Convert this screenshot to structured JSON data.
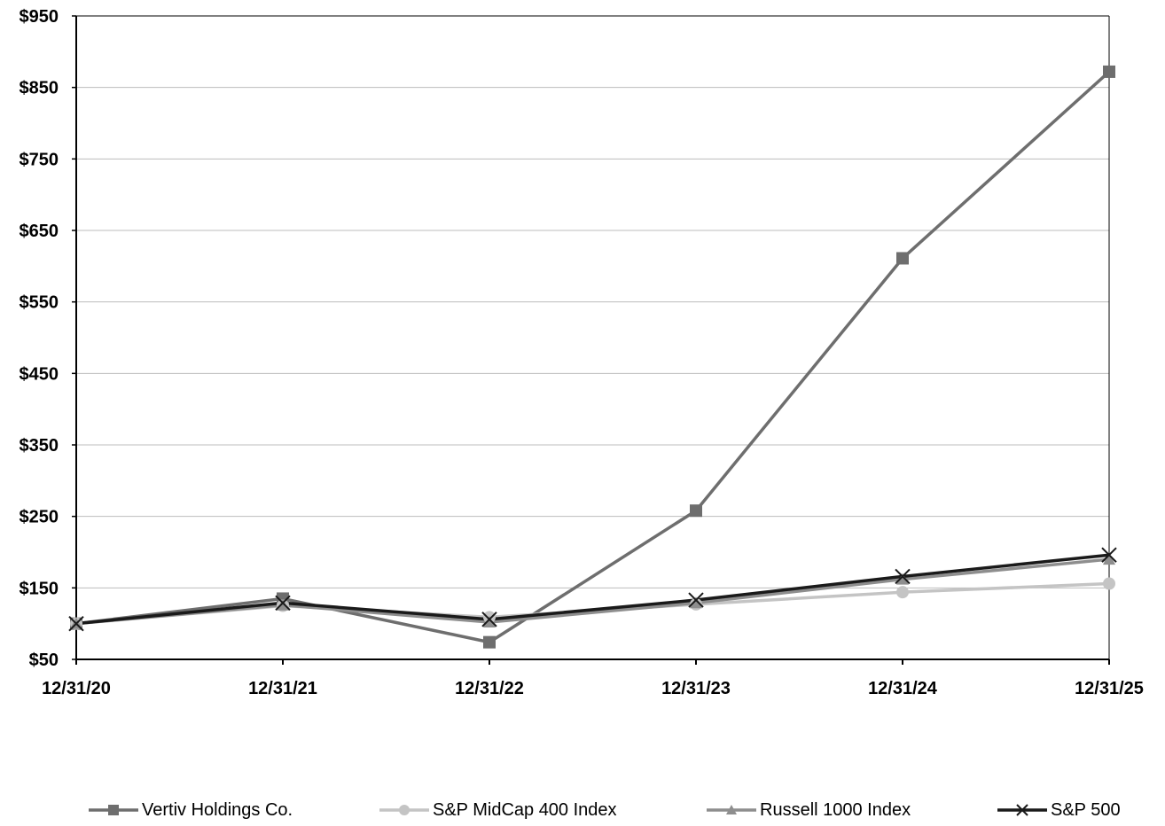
{
  "chart_data": {
    "type": "line",
    "title": "",
    "xlabel": "",
    "ylabel": "",
    "categories": [
      "12/31/20",
      "12/31/21",
      "12/31/22",
      "12/31/23",
      "12/31/24",
      "12/31/25"
    ],
    "ylim": [
      50,
      950
    ],
    "yticks": [
      50,
      150,
      250,
      350,
      450,
      550,
      650,
      750,
      850,
      950
    ],
    "ytick_labels": [
      "$50",
      "$150",
      "$250",
      "$350",
      "$450",
      "$550",
      "$650",
      "$750",
      "$850",
      "$950"
    ],
    "grid": "horizontal",
    "legend_position": "bottom",
    "series": [
      {
        "name": "Vertiv Holdings Co.",
        "values": [
          100,
          135,
          74,
          258,
          611,
          872
        ],
        "color": "#6e6e6e",
        "marker": "square"
      },
      {
        "name": "S&P MidCap 400 Index",
        "values": [
          100,
          125,
          109,
          127,
          144,
          156
        ],
        "color": "#c4c4c4",
        "marker": "circle"
      },
      {
        "name": "Russell 1000 Index",
        "values": [
          100,
          126,
          102,
          129,
          162,
          190
        ],
        "color": "#8e8e8e",
        "marker": "triangle"
      },
      {
        "name": "S&P 500",
        "values": [
          100,
          129,
          106,
          133,
          166,
          196
        ],
        "color": "#1a1a1a",
        "marker": "x"
      }
    ]
  }
}
